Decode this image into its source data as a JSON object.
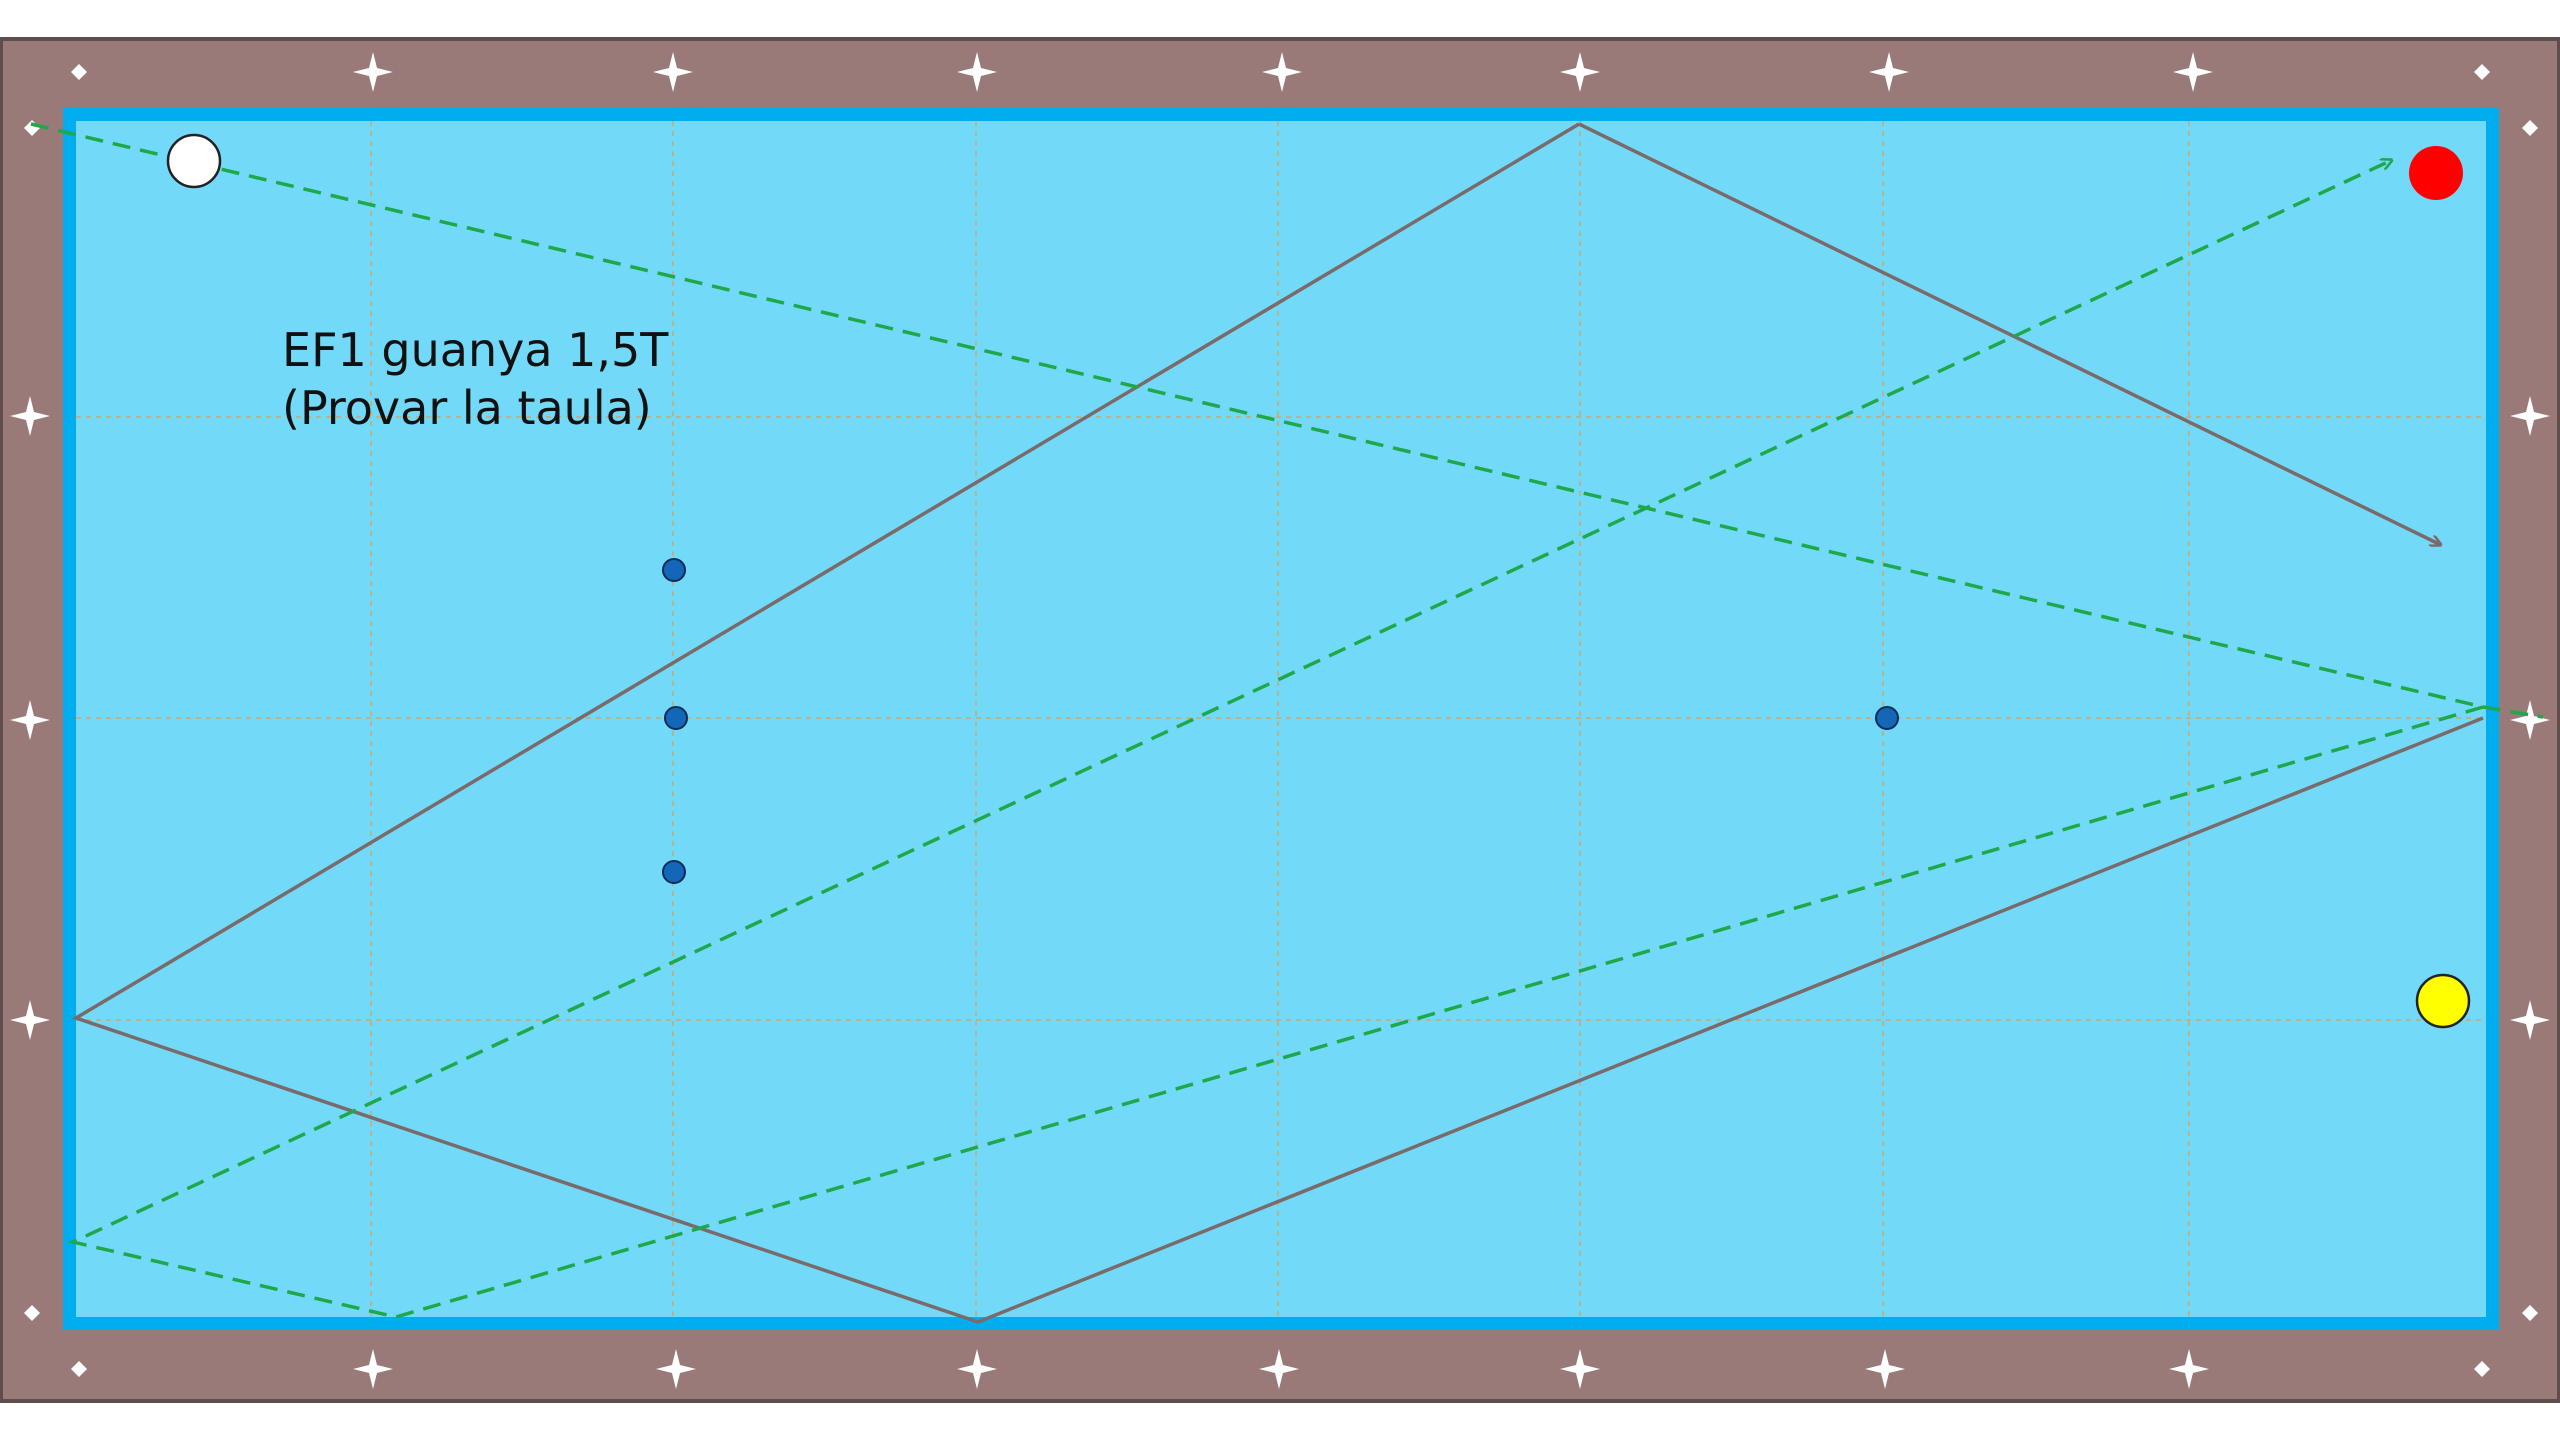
{
  "annotation": {
    "line1": "EF1 guanya 1,5T",
    "line2": "(Provar la taula)"
  },
  "colors": {
    "background": "#ffffff",
    "rail_wood": "#9a7a78",
    "rail_border": "#5e4d4c",
    "cushion": "#00aeef",
    "cloth": "#72d9f9",
    "grid": "#c9a86a",
    "diamond": "#ffffff",
    "path_solid": "#7a6a6a",
    "path_dashed": "#1fa84a",
    "ball_white": "#ffffff",
    "ball_red": "#ff0000",
    "ball_yellow": "#ffff00",
    "spot": "#1466b8"
  },
  "balls": [
    {
      "name": "white-ball",
      "color": "#ffffff"
    },
    {
      "name": "red-ball",
      "color": "#ff0000"
    },
    {
      "name": "yellow-ball",
      "color": "#ffff00"
    }
  ],
  "spots": [
    "spot-1",
    "spot-2",
    "spot-3",
    "spot-4"
  ],
  "paths": [
    {
      "name": "solid-trajectory",
      "style": "solid"
    },
    {
      "name": "dashed-trajectory-cue",
      "style": "dashed"
    },
    {
      "name": "dashed-trajectory-return",
      "style": "dashed"
    }
  ]
}
